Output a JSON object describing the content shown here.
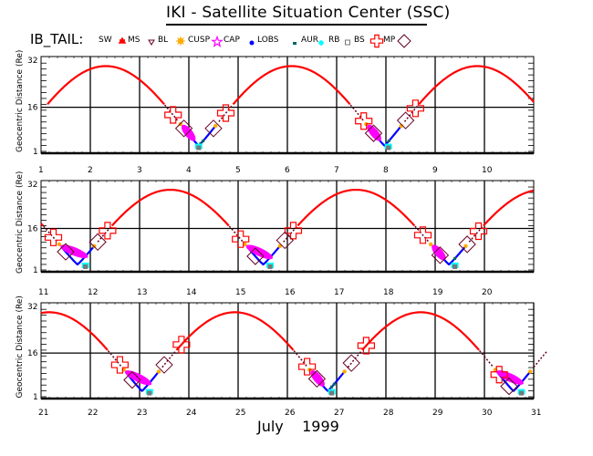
{
  "header": {
    "title": "IKI - Satellite Situation Center (SSC)",
    "satellite": "IB_TAIL:"
  },
  "legend": {
    "items": [
      {
        "key": "SW",
        "label": "SW",
        "symbol": "none",
        "color": "#000000"
      },
      {
        "key": "MS",
        "label": "MS",
        "symbol": "red-splat",
        "color": "#ff0000"
      },
      {
        "key": "BL",
        "label": "BL",
        "symbol": "triangle-down",
        "color": "#660022"
      },
      {
        "key": "CUSP",
        "label": "CUSP",
        "symbol": "sun",
        "color": "#ffaa00"
      },
      {
        "key": "CAP",
        "label": "CAP",
        "symbol": "star",
        "color": "#ff00ff"
      },
      {
        "key": "LOBS",
        "label": "LOBS",
        "symbol": "dot",
        "color": "#0000ff"
      },
      {
        "key": "AUR",
        "label": "AUR",
        "symbol": "small-square",
        "color": "#006666"
      },
      {
        "key": "RB",
        "label": "RB",
        "symbol": "asterisk",
        "color": "#00ffff"
      },
      {
        "key": "BS",
        "label": "BS",
        "symbol": "square",
        "color": "#777777"
      },
      {
        "key": "MP",
        "label": "MP",
        "symbol": "cross",
        "color": "#ff0000"
      },
      {
        "key": "MP2",
        "label": "",
        "symbol": "diamond",
        "color": "#660022"
      }
    ]
  },
  "footer": {
    "month": "July",
    "year": "1999"
  },
  "colors": {
    "ms": "#ff0000",
    "bl": "#660022",
    "cusp": "#ffaa00",
    "cap": "#ff00ff",
    "lobs": "#0000ff",
    "aur": "#006666",
    "rb": "#00ffff",
    "bs": "#777777",
    "mp": "#ff0000",
    "diamond": "#660022",
    "grid": "#000000"
  },
  "chart_data": {
    "type": "line",
    "title": "IKI - Satellite Situation Center (SSC)",
    "xlabel": "July 1999",
    "ylabel": "Geocentric Distance (Re)",
    "y_ticks": [
      "1",
      "16",
      "32"
    ],
    "ylim": [
      1,
      32
    ],
    "grid": true,
    "panels": [
      {
        "xlim": [
          1,
          11
        ],
        "x_ticks": [
          "1",
          "2",
          "3",
          "4",
          "5",
          "6",
          "7",
          "8",
          "9",
          "10"
        ],
        "perigees": [
          4.2,
          8.05
        ],
        "mp_crossings": [
          3.68,
          4.75,
          7.55,
          8.6
        ],
        "bs_diamond": [
          3.9,
          4.5,
          7.75,
          8.4
        ]
      },
      {
        "xlim": [
          11,
          21
        ],
        "x_ticks": [
          "11",
          "12",
          "13",
          "14",
          "15",
          "16",
          "17",
          "18",
          "19",
          "20"
        ],
        "perigees": [
          11.9,
          15.65,
          19.4
        ],
        "mp_crossings": [
          11.25,
          12.35,
          15.05,
          16.12,
          18.75,
          19.88
        ],
        "bs_diamond": [
          11.5,
          12.15,
          15.35,
          15.95,
          19.1,
          19.65
        ]
      },
      {
        "xlim": [
          21,
          32
        ],
        "x_ticks": [
          "21",
          "22",
          "23",
          "24",
          "25",
          "26",
          "27",
          "28",
          "29",
          "30",
          "31"
        ],
        "perigees": [
          23.2,
          26.9,
          30.75
        ],
        "mp_crossings": [
          22.6,
          23.85,
          26.4,
          27.6,
          30.3,
          31.45
        ],
        "bs_diamond": [
          22.85,
          23.5,
          26.6,
          27.3,
          30.5,
          31.15
        ]
      }
    ],
    "orbit": {
      "period_days": 3.77,
      "apogee_re": 30,
      "perigee_re": 3,
      "first_perigee_day": 4.2
    },
    "regions_along_orbit": [
      "MS",
      "MP",
      "BL",
      "BS",
      "CUSP",
      "CAP",
      "LOBS",
      "AUR",
      "RB"
    ]
  }
}
